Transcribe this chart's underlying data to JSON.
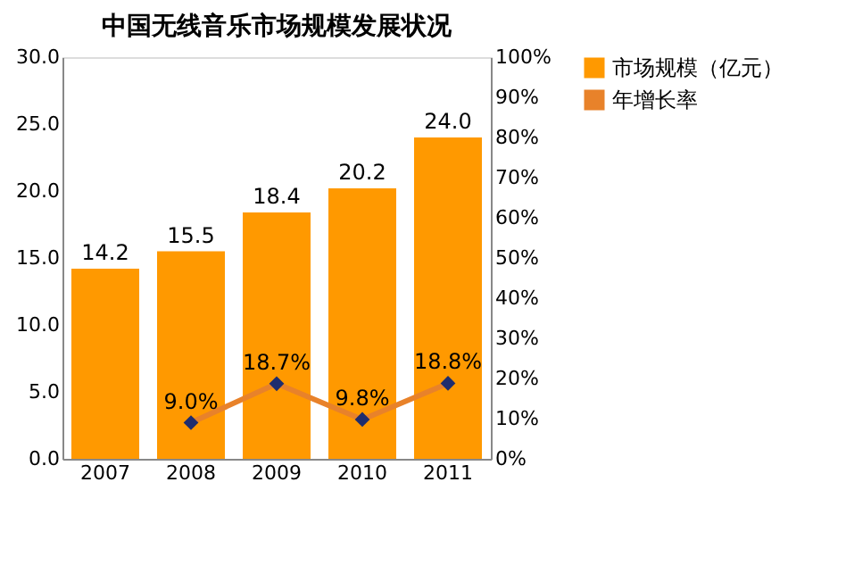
{
  "chart_data": {
    "type": "bar",
    "title": "中国无线音乐市场规模发展状况",
    "categories": [
      "2007",
      "2008",
      "2009",
      "2010",
      "2011"
    ],
    "series": [
      {
        "name": "市场规模（亿元）",
        "color": "#ff9900",
        "values": [
          14.2,
          15.5,
          18.4,
          20.2,
          24.0
        ],
        "value_labels": [
          "14.2",
          "15.5",
          "18.4",
          "20.2",
          "24.0"
        ]
      },
      {
        "name": "年增长率",
        "type": "line",
        "axis": "y2",
        "color": "#e8822a",
        "marker": "diamond",
        "values": [
          null,
          9.0,
          18.7,
          9.8,
          18.8
        ],
        "value_labels": [
          null,
          "9.0%",
          "18.7%",
          "9.8%",
          "18.8%"
        ]
      }
    ],
    "ylim": [
      0,
      30
    ],
    "yticks": [
      {
        "value": 0,
        "label": "0.0"
      },
      {
        "value": 5,
        "label": "5.0"
      },
      {
        "value": 10,
        "label": "10.0"
      },
      {
        "value": 15,
        "label": "15.0"
      },
      {
        "value": 20,
        "label": "20.0"
      },
      {
        "value": 25,
        "label": "25.0"
      },
      {
        "value": 30,
        "label": "30.0"
      }
    ],
    "y2lim": [
      0,
      100
    ],
    "y2ticks": [
      {
        "value": 0,
        "label": "0%"
      },
      {
        "value": 10,
        "label": "10%"
      },
      {
        "value": 20,
        "label": "20%"
      },
      {
        "value": 30,
        "label": "30%"
      },
      {
        "value": 40,
        "label": "40%"
      },
      {
        "value": 50,
        "label": "50%"
      },
      {
        "value": 60,
        "label": "60%"
      },
      {
        "value": 70,
        "label": "70%"
      },
      {
        "value": 80,
        "label": "80%"
      },
      {
        "value": 90,
        "label": "90%"
      },
      {
        "value": 100,
        "label": "100%"
      }
    ],
    "legend": "right",
    "grid": false
  }
}
